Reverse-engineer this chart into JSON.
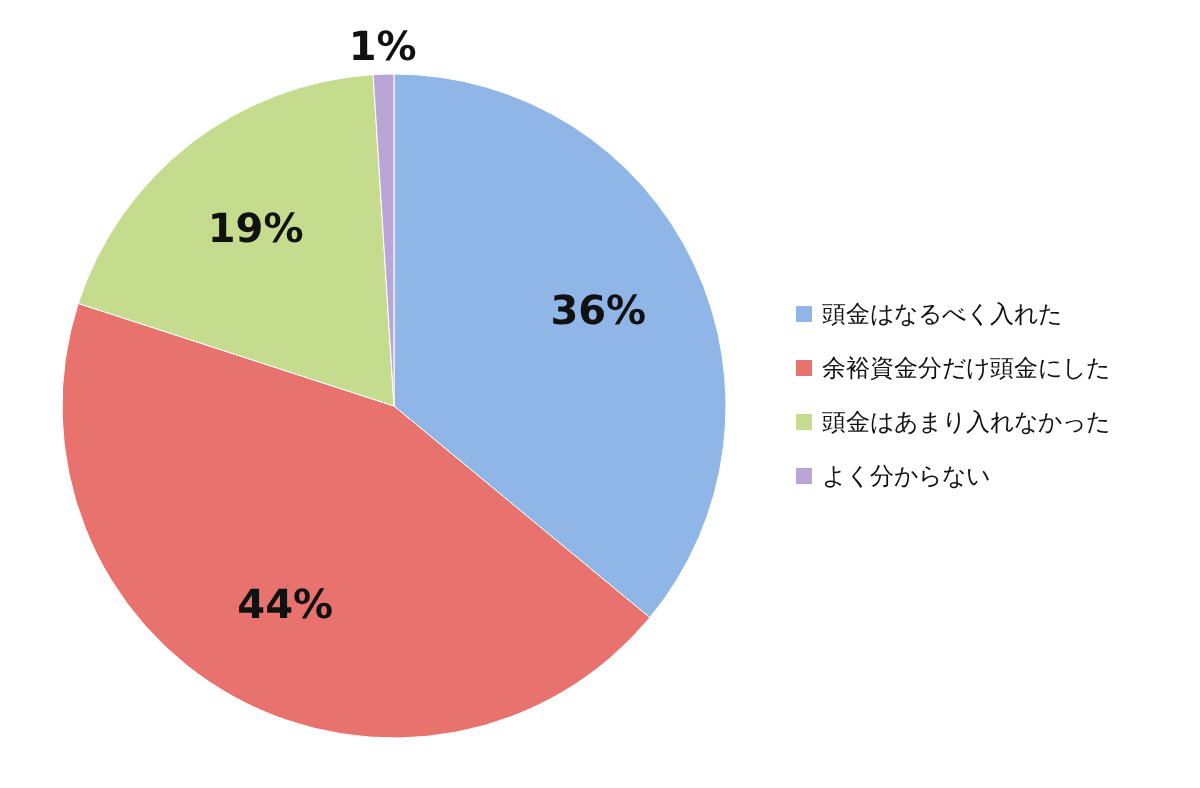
{
  "chart_data": {
    "type": "pie",
    "categories": [
      "頭金はなるべく入れた",
      "余裕資金分だけ頭金にした",
      "頭金はあまり入れなかった",
      "よく分からない"
    ],
    "values": [
      36,
      44,
      19,
      1
    ],
    "colors": [
      "#8fb6e6",
      "#e8726e",
      "#c5dc8e",
      "#b9a6d6"
    ],
    "value_labels": [
      "36%",
      "44%",
      "19%",
      "1%"
    ],
    "legend": "right"
  }
}
